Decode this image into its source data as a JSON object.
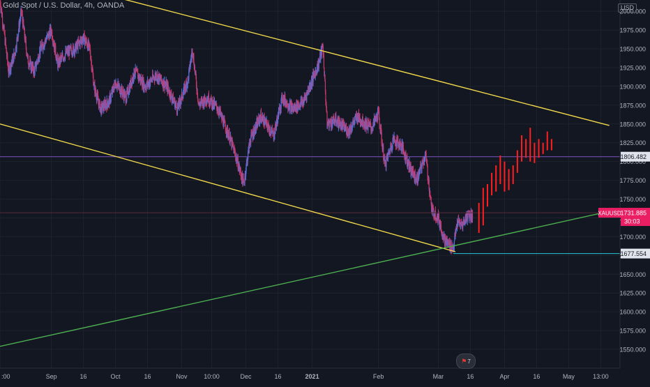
{
  "header": {
    "title": "Gold Spot / U.S. Dollar, 4h, OANDA",
    "currency": "USD"
  },
  "colors": {
    "background": "#131722",
    "grid": "#1e222d",
    "axis_text": "#b2b5be",
    "candle_up": "#5b6fd6",
    "candle_down": "#c9386b",
    "channel_lines": "#f0d84a",
    "support_line": "#4caf50",
    "resistance_level": "#7e57c2",
    "forecast_bars": "#ff1f1f",
    "last_price_badge": "#e91e63",
    "support_level": "#26c6da"
  },
  "event_badge": {
    "flag": "⚑",
    "count": "7"
  },
  "chart_data": {
    "type": "candlestick",
    "title": "Gold Spot / U.S. Dollar, 4h, OANDA",
    "symbol": "XAUUSD",
    "timeframe": "4h",
    "source": "OANDA",
    "currency": "USD",
    "ylim": [
      1525,
      2015
    ],
    "y_ticks": [
      1550,
      1575,
      1600,
      1625,
      1650,
      1675,
      1700,
      1725,
      1750,
      1775,
      1800,
      1825,
      1850,
      1875,
      1900,
      1925,
      1950,
      1975,
      2000
    ],
    "y_tick_labels": [
      "1550.000",
      "1575.000",
      "1600.000",
      "1625.000",
      "1650.000",
      "1675.000",
      "1700.000",
      "1725.000",
      "1750.000",
      "1775.000",
      "1800.000",
      "1825.000",
      "1850.000",
      "1875.000",
      "1900.000",
      "1925.000",
      "1950.000",
      "1975.000",
      "2000.000"
    ],
    "x_range": [
      "2020-08-08",
      "2021-05-25"
    ],
    "x_ticks": [
      {
        "label": ":00",
        "date": "2020-08-08"
      },
      {
        "label": "Sep",
        "date": "2020-09-01"
      },
      {
        "label": "16",
        "date": "2020-09-16"
      },
      {
        "label": "Oct",
        "date": "2020-10-01"
      },
      {
        "label": "16",
        "date": "2020-10-16"
      },
      {
        "label": "Nov",
        "date": "2020-11-01"
      },
      {
        "label": "10:00",
        "date": "2020-11-15"
      },
      {
        "label": "Dec",
        "date": "2020-12-01"
      },
      {
        "label": "16",
        "date": "2020-12-16"
      },
      {
        "label": "2021",
        "date": "2021-01-01"
      },
      {
        "label": "Feb",
        "date": "2021-02-01"
      },
      {
        "label": "Mar",
        "date": "2021-03-01"
      },
      {
        "label": "16",
        "date": "2021-03-16"
      },
      {
        "label": "Apr",
        "date": "2021-04-01"
      },
      {
        "label": "16",
        "date": "2021-04-16"
      },
      {
        "label": "May",
        "date": "2021-05-01"
      },
      {
        "label": "13:00",
        "date": "2021-05-16"
      }
    ],
    "price_path": [
      [
        "2020-08-08",
        2015
      ],
      [
        "2020-08-10",
        1970
      ],
      [
        "2020-08-12",
        1920
      ],
      [
        "2020-08-15",
        1945
      ],
      [
        "2020-08-18",
        2000
      ],
      [
        "2020-08-21",
        1935
      ],
      [
        "2020-08-24",
        1920
      ],
      [
        "2020-08-27",
        1950
      ],
      [
        "2020-09-01",
        1975
      ],
      [
        "2020-09-04",
        1930
      ],
      [
        "2020-09-08",
        1945
      ],
      [
        "2020-09-12",
        1950
      ],
      [
        "2020-09-16",
        1965
      ],
      [
        "2020-09-19",
        1950
      ],
      [
        "2020-09-21",
        1900
      ],
      [
        "2020-09-24",
        1870
      ],
      [
        "2020-09-28",
        1880
      ],
      [
        "2020-10-01",
        1905
      ],
      [
        "2020-10-06",
        1885
      ],
      [
        "2020-10-10",
        1920
      ],
      [
        "2020-10-15",
        1900
      ],
      [
        "2020-10-20",
        1915
      ],
      [
        "2020-10-25",
        1900
      ],
      [
        "2020-10-30",
        1870
      ],
      [
        "2020-11-04",
        1910
      ],
      [
        "2020-11-06",
        1950
      ],
      [
        "2020-11-09",
        1875
      ],
      [
        "2020-11-13",
        1885
      ],
      [
        "2020-11-18",
        1870
      ],
      [
        "2020-11-23",
        1835
      ],
      [
        "2020-11-26",
        1810
      ],
      [
        "2020-11-30",
        1770
      ],
      [
        "2020-12-03",
        1830
      ],
      [
        "2020-12-08",
        1860
      ],
      [
        "2020-12-14",
        1835
      ],
      [
        "2020-12-18",
        1885
      ],
      [
        "2020-12-23",
        1870
      ],
      [
        "2020-12-28",
        1880
      ],
      [
        "2021-01-04",
        1930
      ],
      [
        "2021-01-06",
        1955
      ],
      [
        "2021-01-08",
        1850
      ],
      [
        "2021-01-12",
        1855
      ],
      [
        "2021-01-18",
        1840
      ],
      [
        "2021-01-22",
        1860
      ],
      [
        "2021-01-26",
        1850
      ],
      [
        "2021-01-29",
        1845
      ],
      [
        "2021-02-01",
        1865
      ],
      [
        "2021-02-04",
        1795
      ],
      [
        "2021-02-08",
        1830
      ],
      [
        "2021-02-12",
        1820
      ],
      [
        "2021-02-16",
        1790
      ],
      [
        "2021-02-19",
        1775
      ],
      [
        "2021-02-23",
        1810
      ],
      [
        "2021-02-26",
        1735
      ],
      [
        "2021-03-01",
        1725
      ],
      [
        "2021-03-04",
        1695
      ],
      [
        "2021-03-08",
        1685
      ],
      [
        "2021-03-10",
        1720
      ],
      [
        "2021-03-12",
        1715
      ],
      [
        "2021-03-15",
        1730
      ],
      [
        "2021-03-17",
        1728
      ]
    ],
    "forecast_bars": [
      {
        "date": "2021-03-20",
        "low": 1705,
        "high": 1745
      },
      {
        "date": "2021-03-22",
        "low": 1715,
        "high": 1765
      },
      {
        "date": "2021-03-24",
        "low": 1740,
        "high": 1770
      },
      {
        "date": "2021-03-26",
        "low": 1755,
        "high": 1785
      },
      {
        "date": "2021-03-28",
        "low": 1760,
        "high": 1795
      },
      {
        "date": "2021-03-30",
        "low": 1770,
        "high": 1808
      },
      {
        "date": "2021-04-01",
        "low": 1760,
        "high": 1800
      },
      {
        "date": "2021-04-03",
        "low": 1762,
        "high": 1790
      },
      {
        "date": "2021-04-05",
        "low": 1770,
        "high": 1795
      },
      {
        "date": "2021-04-07",
        "low": 1785,
        "high": 1815
      },
      {
        "date": "2021-04-09",
        "low": 1800,
        "high": 1835
      },
      {
        "date": "2021-04-11",
        "low": 1805,
        "high": 1830
      },
      {
        "date": "2021-04-13",
        "low": 1800,
        "high": 1845
      },
      {
        "date": "2021-04-15",
        "low": 1798,
        "high": 1825
      },
      {
        "date": "2021-04-17",
        "low": 1805,
        "high": 1830
      },
      {
        "date": "2021-04-19",
        "low": 1810,
        "high": 1825
      },
      {
        "date": "2021-04-21",
        "low": 1815,
        "high": 1840
      },
      {
        "date": "2021-04-23",
        "low": 1815,
        "high": 1830
      }
    ],
    "trendlines": [
      {
        "name": "channel-upper",
        "color": "#f0d84a",
        "from": [
          "2020-09-16",
          2030
        ],
        "to": [
          "2021-05-20",
          1848
        ]
      },
      {
        "name": "channel-lower",
        "color": "#f0d84a",
        "from": [
          "2020-08-08",
          1850
        ],
        "to": [
          "2021-03-09",
          1680
        ]
      },
      {
        "name": "support-trend",
        "color": "#4caf50",
        "from": [
          "2020-08-08",
          1554
        ],
        "to": [
          "2021-05-22",
          1735
        ]
      }
    ],
    "horizontal_levels": [
      {
        "name": "resistance",
        "value": 1806.482,
        "label": "1806.482",
        "color": "#7e57c2",
        "from": "2020-08-08"
      },
      {
        "name": "support",
        "value": 1677.554,
        "label": "1677.554",
        "color": "#26c6da",
        "from": "2021-03-08"
      }
    ],
    "last_price": {
      "symbol": "XAUUSD",
      "value": 1731.885,
      "label": "1731.885",
      "countdown": "30:03"
    }
  }
}
